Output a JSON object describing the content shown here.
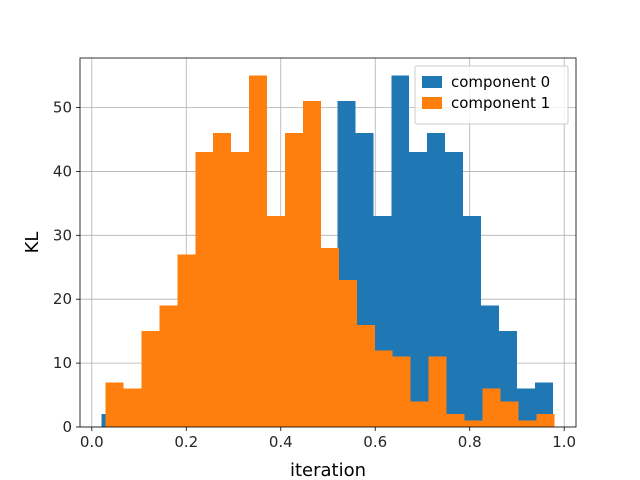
{
  "chart_data": {
    "type": "bar",
    "title": "",
    "xlabel": "iteration",
    "ylabel": "KL",
    "xlim": [
      -0.025,
      1.025
    ],
    "ylim": [
      0,
      57.75
    ],
    "xticks": [
      0.0,
      0.2,
      0.4,
      0.6,
      0.8,
      1.0
    ],
    "xtick_labels": [
      "0.0",
      "0.2",
      "0.4",
      "0.6",
      "0.8",
      "1.0"
    ],
    "yticks": [
      0,
      10,
      20,
      30,
      40,
      50
    ],
    "ytick_labels": [
      "0",
      "10",
      "20",
      "30",
      "40",
      "50"
    ],
    "grid": true,
    "legend_position": "top-right",
    "series": [
      {
        "name": "component 0",
        "color": "#1f77b4",
        "bins": [
          {
            "x0": 0.02,
            "x1": 0.029,
            "value": 2
          },
          {
            "x0": 0.52,
            "x1": 0.558,
            "value": 51
          },
          {
            "x0": 0.558,
            "x1": 0.596,
            "value": 46
          },
          {
            "x0": 0.596,
            "x1": 0.634,
            "value": 33
          },
          {
            "x0": 0.634,
            "x1": 0.672,
            "value": 55
          },
          {
            "x0": 0.672,
            "x1": 0.71,
            "value": 43
          },
          {
            "x0": 0.71,
            "x1": 0.748,
            "value": 46
          },
          {
            "x0": 0.748,
            "x1": 0.786,
            "value": 43
          },
          {
            "x0": 0.786,
            "x1": 0.824,
            "value": 33
          },
          {
            "x0": 0.824,
            "x1": 0.862,
            "value": 19
          },
          {
            "x0": 0.862,
            "x1": 0.9,
            "value": 15
          },
          {
            "x0": 0.9,
            "x1": 0.938,
            "value": 6
          },
          {
            "x0": 0.938,
            "x1": 0.976,
            "value": 7
          }
        ]
      },
      {
        "name": "component 1",
        "color": "#ff7f0e",
        "bins": [
          {
            "x0": 0.029,
            "x1": 0.067,
            "value": 7
          },
          {
            "x0": 0.067,
            "x1": 0.105,
            "value": 6
          },
          {
            "x0": 0.105,
            "x1": 0.143,
            "value": 15
          },
          {
            "x0": 0.143,
            "x1": 0.181,
            "value": 19
          },
          {
            "x0": 0.181,
            "x1": 0.219,
            "value": 27
          },
          {
            "x0": 0.219,
            "x1": 0.257,
            "value": 43
          },
          {
            "x0": 0.257,
            "x1": 0.295,
            "value": 46
          },
          {
            "x0": 0.295,
            "x1": 0.333,
            "value": 43
          },
          {
            "x0": 0.333,
            "x1": 0.371,
            "value": 55
          },
          {
            "x0": 0.371,
            "x1": 0.409,
            "value": 33
          },
          {
            "x0": 0.409,
            "x1": 0.447,
            "value": 46
          },
          {
            "x0": 0.447,
            "x1": 0.485,
            "value": 51
          },
          {
            "x0": 0.485,
            "x1": 0.523,
            "value": 28
          },
          {
            "x0": 0.523,
            "x1": 0.561,
            "value": 23
          },
          {
            "x0": 0.561,
            "x1": 0.599,
            "value": 16
          },
          {
            "x0": 0.599,
            "x1": 0.637,
            "value": 12
          },
          {
            "x0": 0.637,
            "x1": 0.675,
            "value": 11
          },
          {
            "x0": 0.675,
            "x1": 0.713,
            "value": 4
          },
          {
            "x0": 0.713,
            "x1": 0.751,
            "value": 11
          },
          {
            "x0": 0.751,
            "x1": 0.789,
            "value": 2
          },
          {
            "x0": 0.789,
            "x1": 0.827,
            "value": 1
          },
          {
            "x0": 0.827,
            "x1": 0.865,
            "value": 6
          },
          {
            "x0": 0.865,
            "x1": 0.903,
            "value": 4
          },
          {
            "x0": 0.903,
            "x1": 0.941,
            "value": 1
          },
          {
            "x0": 0.941,
            "x1": 0.979,
            "value": 2
          }
        ]
      }
    ]
  }
}
